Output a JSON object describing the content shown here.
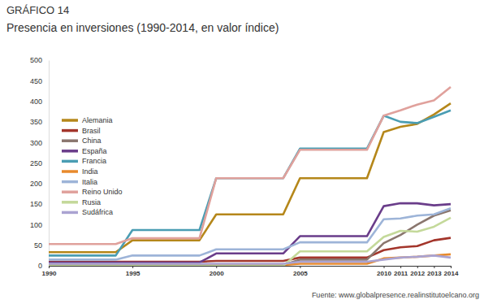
{
  "chart_data": {
    "type": "line",
    "title": "GRÁFICO 14",
    "subtitle": "Presencia en inversiones (1990-2014, en valor índice)",
    "source": "Fuente: www.globalpresence.realinstitutoelcano.org",
    "categories": [
      "1990",
      null,
      null,
      null,
      null,
      "1995",
      null,
      null,
      null,
      null,
      "2000",
      null,
      null,
      null,
      null,
      "2005",
      null,
      null,
      null,
      null,
      "2010",
      "2011",
      "2012",
      "2013",
      "2014"
    ],
    "ylim": [
      0,
      500
    ],
    "yticks": [
      0,
      50,
      100,
      150,
      200,
      250,
      300,
      350,
      400,
      450,
      500
    ],
    "grid": false,
    "legend": "left",
    "series": [
      {
        "name": "Alemania",
        "color": "#b5871a",
        "values": [
          33,
          33,
          33,
          33,
          33,
          62,
          62,
          62,
          62,
          62,
          125,
          125,
          125,
          125,
          125,
          213,
          213,
          213,
          213,
          213,
          325,
          338,
          345,
          368,
          395
        ]
      },
      {
        "name": "Brasil",
        "color": "#a3352b",
        "values": [
          10,
          10,
          10,
          10,
          10,
          10,
          10,
          10,
          10,
          10,
          12,
          12,
          12,
          12,
          12,
          20,
          20,
          20,
          20,
          20,
          38,
          45,
          48,
          62,
          68
        ]
      },
      {
        "name": "China",
        "color": "#8a766e",
        "values": [
          2,
          2,
          2,
          2,
          2,
          2,
          2,
          2,
          2,
          2,
          2,
          2,
          2,
          2,
          2,
          15,
          15,
          15,
          15,
          15,
          55,
          75,
          100,
          122,
          135
        ]
      },
      {
        "name": "España",
        "color": "#6a3d8a",
        "values": [
          8,
          8,
          8,
          8,
          8,
          8,
          8,
          8,
          8,
          8,
          30,
          30,
          30,
          30,
          30,
          72,
          72,
          72,
          72,
          72,
          145,
          152,
          152,
          147,
          150
        ]
      },
      {
        "name": "Francia",
        "color": "#4a9db3",
        "values": [
          25,
          25,
          25,
          25,
          25,
          87,
          87,
          87,
          87,
          87,
          213,
          213,
          213,
          213,
          213,
          285,
          285,
          285,
          285,
          285,
          365,
          350,
          347,
          362,
          378
        ]
      },
      {
        "name": "India",
        "color": "#e88a2c",
        "values": [
          0,
          0,
          0,
          0,
          0,
          0,
          0,
          0,
          0,
          0,
          2,
          2,
          2,
          2,
          2,
          5,
          5,
          5,
          5,
          5,
          18,
          20,
          22,
          25,
          28
        ]
      },
      {
        "name": "Italia",
        "color": "#9db4d8",
        "values": [
          15,
          15,
          15,
          15,
          15,
          25,
          25,
          25,
          25,
          25,
          40,
          40,
          40,
          40,
          40,
          57,
          57,
          57,
          57,
          57,
          113,
          115,
          122,
          125,
          140
        ]
      },
      {
        "name": "Reino Unido",
        "color": "#e0a19c",
        "values": [
          53,
          53,
          53,
          53,
          53,
          67,
          67,
          67,
          67,
          67,
          213,
          213,
          213,
          213,
          213,
          282,
          282,
          282,
          282,
          282,
          365,
          378,
          392,
          402,
          435
        ]
      },
      {
        "name": "Rusia",
        "color": "#c4d99a",
        "values": [
          0,
          0,
          0,
          0,
          0,
          0,
          0,
          0,
          0,
          0,
          0,
          0,
          0,
          0,
          0,
          35,
          35,
          35,
          35,
          35,
          70,
          85,
          83,
          95,
          117
        ]
      },
      {
        "name": "Sudáfrica",
        "color": "#aaa3d1",
        "values": [
          5,
          5,
          5,
          5,
          5,
          5,
          5,
          5,
          5,
          5,
          5,
          5,
          5,
          5,
          5,
          10,
          10,
          10,
          10,
          10,
          15,
          20,
          22,
          25,
          20
        ]
      }
    ]
  }
}
